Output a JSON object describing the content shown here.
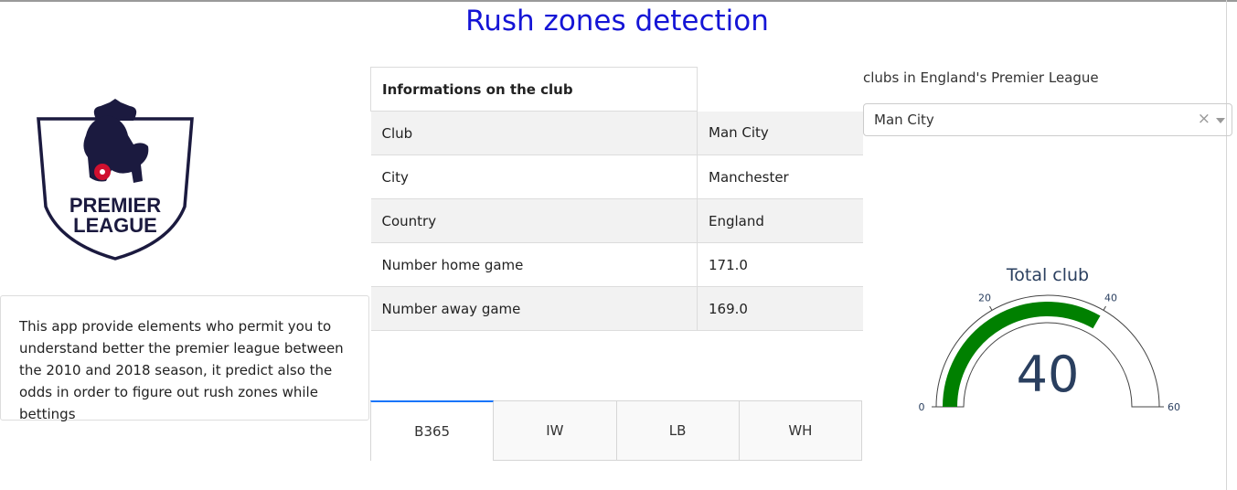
{
  "app": {
    "title": "Rush zones detection"
  },
  "logo": {
    "line1": "PREMIER",
    "line2": "LEAGUE"
  },
  "description": "This app provide elements who permit you to understand better the premier league between the 2010 and 2018 season, it predict also the odds in order to figure out rush zones while bettings",
  "club_table": {
    "header": "Informations on the club",
    "rows": [
      {
        "label": "Club",
        "value": "Man City"
      },
      {
        "label": "City",
        "value": "Manchester"
      },
      {
        "label": "Country",
        "value": "England"
      },
      {
        "label": "Number home game",
        "value": "171.0"
      },
      {
        "label": "Number away game",
        "value": "169.0"
      }
    ]
  },
  "tabs": [
    {
      "label": "B365",
      "selected": true
    },
    {
      "label": "IW",
      "selected": false
    },
    {
      "label": "LB",
      "selected": false
    },
    {
      "label": "WH",
      "selected": false
    }
  ],
  "dropdown": {
    "label": "clubs in England's Premier League",
    "selected": "Man City",
    "clear_icon": "×"
  },
  "gauge": {
    "title": "Total club",
    "value": 40,
    "min": 0,
    "max": 60,
    "ticks": [
      "0",
      "20",
      "40",
      "60"
    ],
    "bar_color": "#008000"
  }
}
